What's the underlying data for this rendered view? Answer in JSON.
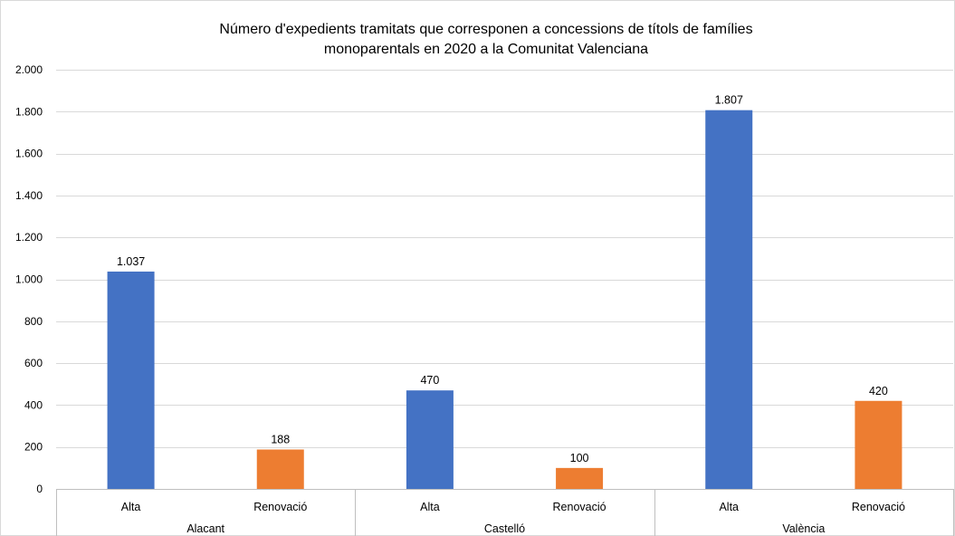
{
  "chart_data": {
    "type": "bar",
    "title_lines": [
      "Número d'expedients tramitats que corresponen a concessions de títols de famílies",
      "monoparentals en 2020 a la Comunitat Valenciana"
    ],
    "xlabel": "",
    "ylabel": "",
    "ylim": [
      0,
      2000
    ],
    "y_ticks": [
      0,
      200,
      400,
      600,
      800,
      1000,
      1200,
      1400,
      1600,
      1800,
      2000
    ],
    "y_tick_labels": [
      "0",
      "200",
      "400",
      "600",
      "800",
      "1.000",
      "1.200",
      "1.400",
      "1.600",
      "1.800",
      "2.000"
    ],
    "grid": true,
    "legend": "none",
    "groups": [
      "Alacant",
      "Castelló",
      "València"
    ],
    "categories": [
      "Alta",
      "Renovació",
      "Alta",
      "Renovació",
      "Alta",
      "Renovació"
    ],
    "values": [
      1037,
      188,
      470,
      100,
      1807,
      420
    ],
    "value_labels": [
      "1.037",
      "188",
      "470",
      "100",
      "1.807",
      "420"
    ],
    "colors": {
      "Alta": "#4472C4",
      "Renovació": "#ED7D31",
      "grid": "#D9D9D9",
      "axis": "#BFBFBF"
    }
  }
}
